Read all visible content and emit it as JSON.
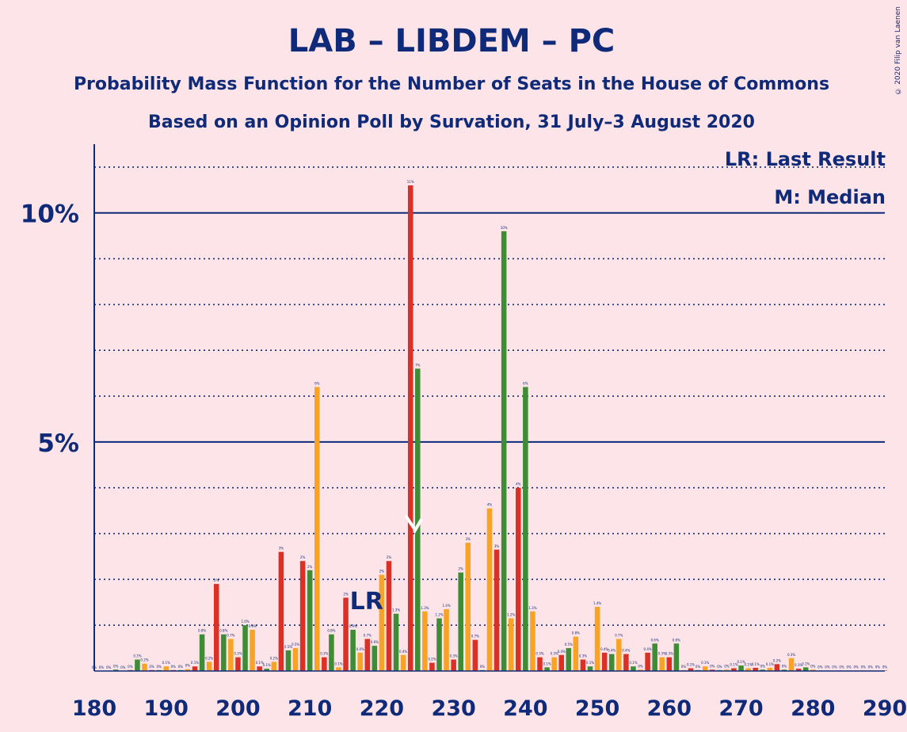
{
  "title": "LAB – LIBDEM – PC",
  "subtitle1": "Probability Mass Function for the Number of Seats in the House of Commons",
  "subtitle2": "Based on an Opinion Poll by Survation, 31 July–3 August 2020",
  "legend_lr": "LR: Last Result",
  "legend_m": "M: Median",
  "lr_mark": "LR",
  "copyright": "© 2020 Filip van Laenen",
  "colors": {
    "background": "#fde4e8",
    "axis": "#0f2a78",
    "green": "#3e8c36",
    "orange": "#f8a326",
    "red": "#da3026"
  },
  "chart_data": {
    "type": "bar",
    "xlabel": "",
    "ylabel": "",
    "xlim": [
      180,
      290
    ],
    "ylim": [
      0,
      11.5
    ],
    "x_ticks": [
      "180",
      "190",
      "200",
      "210",
      "220",
      "230",
      "240",
      "250",
      "260",
      "270",
      "280",
      "290"
    ],
    "y_ticks": [
      "5%",
      "10%"
    ],
    "grid": "dotted at each 1%, solid at 5% and 10%",
    "last_result": 216,
    "median": 224,
    "bar_color_cycle": [
      "green",
      "orange",
      "red"
    ],
    "x": [
      180,
      181,
      182,
      183,
      184,
      185,
      186,
      187,
      188,
      189,
      190,
      191,
      192,
      193,
      194,
      195,
      196,
      197,
      198,
      199,
      200,
      201,
      202,
      203,
      204,
      205,
      206,
      207,
      208,
      209,
      210,
      211,
      212,
      213,
      214,
      215,
      216,
      217,
      218,
      219,
      220,
      221,
      222,
      223,
      224,
      225,
      226,
      227,
      228,
      229,
      230,
      231,
      232,
      233,
      234,
      235,
      236,
      237,
      238,
      239,
      240,
      241,
      242,
      243,
      244,
      245,
      246,
      247,
      248,
      249,
      250,
      251,
      252,
      253,
      254,
      255,
      256,
      257,
      258,
      259,
      260,
      261,
      262,
      263,
      264,
      265,
      266,
      267,
      268,
      269,
      270,
      271,
      272,
      273,
      274,
      275,
      276,
      277,
      278,
      279,
      280,
      281,
      282,
      283,
      284,
      285,
      286,
      287,
      288,
      289,
      290
    ],
    "values": [
      0,
      0,
      0,
      0.03,
      0,
      0.02,
      0.25,
      0.16,
      0.02,
      0.02,
      0.1,
      0.02,
      0.02,
      0.04,
      0.1,
      0.8,
      0.2,
      1.9,
      0.8,
      0.7,
      0.3,
      1.0,
      0.9,
      0.1,
      0.05,
      0.2,
      2.6,
      0.45,
      0.5,
      2.4,
      2.2,
      6.2,
      0.3,
      0.8,
      0.08,
      1.6,
      0.9,
      0.4,
      0.7,
      0.55,
      2.1,
      2.4,
      1.25,
      0.35,
      10.6,
      6.6,
      1.3,
      0.18,
      1.15,
      1.35,
      0.25,
      2.15,
      2.8,
      0.68,
      0.02,
      3.55,
      2.65,
      9.6,
      1.15,
      4.0,
      6.2,
      1.3,
      0.3,
      0.08,
      0.3,
      0.35,
      0.5,
      0.75,
      0.25,
      0.1,
      1.4,
      0.4,
      0.37,
      0.7,
      0.37,
      0.1,
      0.03,
      0.4,
      0.6,
      0.3,
      0.3,
      0.6,
      0.02,
      0.06,
      0.02,
      0.1,
      0.03,
      0.02,
      0.03,
      0.06,
      0.12,
      0.06,
      0.07,
      0.03,
      0.07,
      0.15,
      0.03,
      0.28,
      0.05,
      0.08,
      0.03,
      0.01,
      0.01,
      0.01,
      0.01,
      0.01,
      0.01,
      0.01,
      0.01,
      0.01,
      0.01
    ],
    "bar_labels": [
      "0%",
      "0%",
      "0%",
      "0%",
      "0%",
      "0%",
      "0.3%",
      "0.2%",
      "0%",
      "0%",
      "0.1%",
      "0%",
      "0%",
      "0%",
      "0.1%",
      "0.8%",
      "0.2%",
      "2%",
      "0.8%",
      "0.7%",
      "0.3%",
      "1.0%",
      "0.9%",
      "0.1%",
      "0.1%",
      "0.2%",
      "3%",
      "0.5%",
      "0.5%",
      "2%",
      "2%",
      "6%",
      "0.3%",
      "0.8%",
      "0.1%",
      "2%",
      "0.9%",
      "0.4%",
      "0.7%",
      "0.6%",
      "2%",
      "2%",
      "1.3%",
      "0.4%",
      "11%",
      "7%",
      "1.3%",
      "0.2%",
      "1.2%",
      "1.4%",
      "0.3%",
      "2%",
      "3%",
      "0.7%",
      "0%",
      "4%",
      "3%",
      "10%",
      "1.2%",
      "4%",
      "6%",
      "1.3%",
      "0.3%",
      "0.1%",
      "0.3%",
      "0.4%",
      "0.5%",
      "0.8%",
      "0.3%",
      "0.1%",
      "1.4%",
      "0.4%",
      "0.4%",
      "0.7%",
      "0.4%",
      "0.1%",
      "0%",
      "0.4%",
      "0.6%",
      "0.3%",
      "0.3%",
      "0.6%",
      "0%",
      "0.1%",
      "0%",
      "0.1%",
      "0%",
      "0%",
      "0%",
      "0.1%",
      "0.1%",
      "0.1%",
      "0.1%",
      "0%",
      "0.1%",
      "0.2%",
      "0%",
      "0.3%",
      "0.1%",
      "0.1%",
      "0%",
      "0%",
      "0%",
      "0%",
      "0%",
      "0%",
      "0%",
      "0%",
      "0%",
      "0%",
      "0%"
    ]
  }
}
